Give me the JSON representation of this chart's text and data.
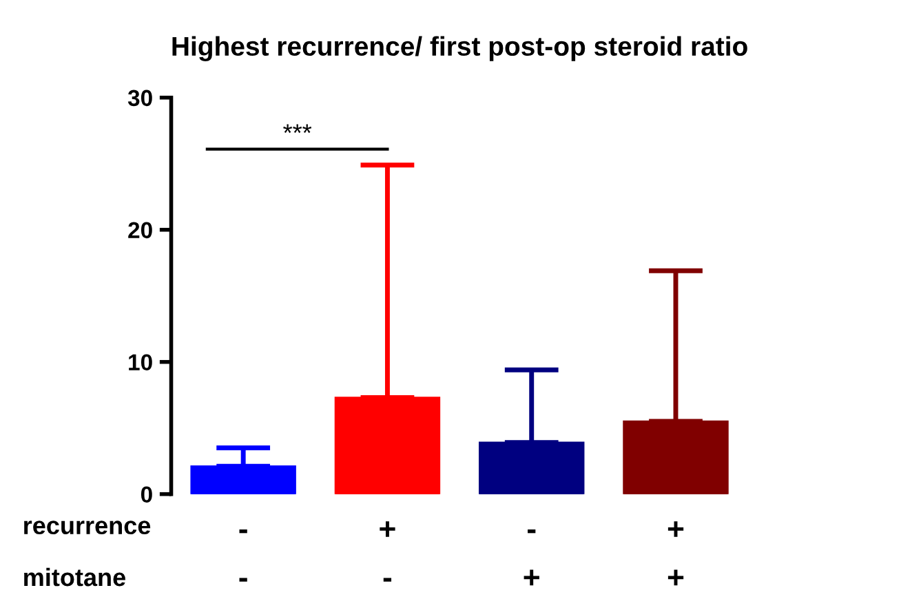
{
  "chart_data": {
    "type": "bar",
    "title": "Highest recurrence/ first post-op steroid ratio",
    "categories": [
      "-\n-",
      "+\n-",
      "-\n+",
      "+\n+"
    ],
    "values": [
      2.1,
      7.3,
      3.9,
      5.5
    ],
    "colors": [
      "#0000ff",
      "#ff0000",
      "#000080",
      "#800000"
    ],
    "errors": [
      [
        2.1,
        3.5
      ],
      [
        7.3,
        24.9
      ],
      [
        3.9,
        9.4
      ],
      [
        5.5,
        16.9
      ]
    ],
    "ylim": [
      0,
      30
    ],
    "yticks": [
      0,
      10,
      20,
      30
    ],
    "grid": false,
    "annotations": [
      "recurrence",
      "mitotane",
      "***"
    ]
  }
}
